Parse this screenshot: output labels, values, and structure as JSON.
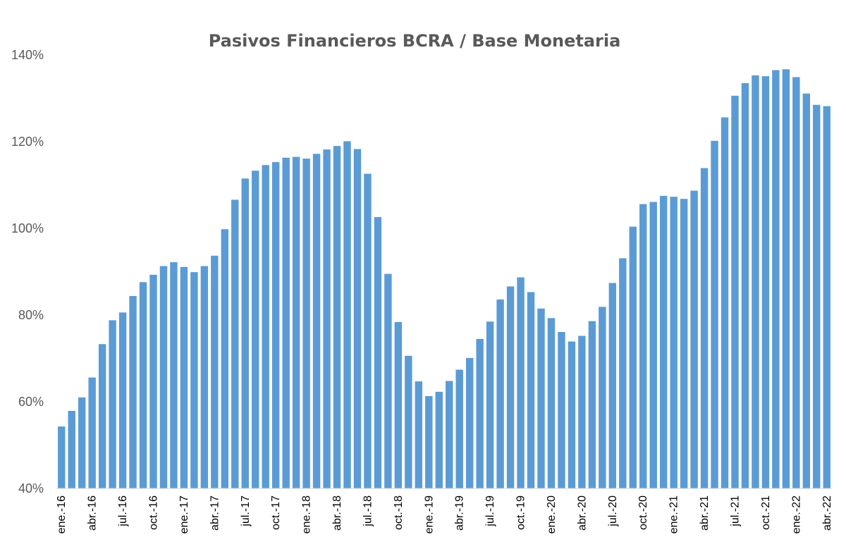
{
  "chart_data": {
    "type": "bar",
    "title": "Pasivos Financieros BCRA / Base Monetaria",
    "xlabel": "",
    "ylabel": "",
    "ylim": [
      40,
      140
    ],
    "yticks": [
      40,
      60,
      80,
      100,
      120,
      140
    ],
    "ytick_labels": [
      "40%",
      "60%",
      "80%",
      "100%",
      "120%",
      "140%"
    ],
    "bar_color": "#5B9BD5",
    "grid": false,
    "legend": "none",
    "categories": [
      "ene.-16",
      "feb.-16",
      "mar.-16",
      "abr.-16",
      "may.-16",
      "jun.-16",
      "jul.-16",
      "ago.-16",
      "sep.-16",
      "oct.-16",
      "nov.-16",
      "dic.-16",
      "ene.-17",
      "feb.-17",
      "mar.-17",
      "abr.-17",
      "may.-17",
      "jun.-17",
      "jul.-17",
      "ago.-17",
      "sep.-17",
      "oct.-17",
      "nov.-17",
      "dic.-17",
      "ene.-18",
      "feb.-18",
      "mar.-18",
      "abr.-18",
      "may.-18",
      "jun.-18",
      "jul.-18",
      "ago.-18",
      "sep.-18",
      "oct.-18",
      "nov.-18",
      "dic.-18",
      "ene.-19",
      "feb.-19",
      "mar.-19",
      "abr.-19",
      "may.-19",
      "jun.-19",
      "jul.-19",
      "ago.-19",
      "sep.-19",
      "oct.-19",
      "nov.-19",
      "dic.-19",
      "ene.-20",
      "feb.-20",
      "mar.-20",
      "abr.-20",
      "may.-20",
      "jun.-20",
      "jul.-20",
      "ago.-20",
      "sep.-20",
      "oct.-20",
      "nov.-20",
      "dic.-20",
      "ene.-21",
      "feb.-21",
      "mar.-21",
      "abr.-21",
      "may.-21",
      "jun.-21",
      "jul.-21",
      "ago.-21",
      "sep.-21",
      "oct.-21",
      "nov.-21",
      "dic.-21",
      "ene.-22",
      "feb.-22",
      "mar.-22",
      "abr.-22"
    ],
    "xtick_labels": [
      "ene.-16",
      "abr.-16",
      "jul.-16",
      "oct.-16",
      "ene.-17",
      "abr.-17",
      "jul.-17",
      "oct.-17",
      "ene.-18",
      "abr.-18",
      "jul.-18",
      "oct.-18",
      "ene.-19",
      "abr.-19",
      "jul.-19",
      "oct.-19",
      "ene.-20",
      "abr.-20",
      "jul.-20",
      "oct.-20",
      "ene.-21",
      "abr.-21",
      "jul.-21",
      "oct.-21",
      "ene.-22",
      "abr.-22"
    ],
    "values": [
      54.3,
      57.9,
      61.0,
      65.6,
      73.3,
      78.8,
      80.6,
      84.4,
      87.6,
      89.3,
      91.3,
      92.2,
      91.1,
      89.9,
      91.3,
      93.7,
      99.8,
      106.6,
      111.5,
      113.3,
      114.6,
      115.3,
      116.3,
      116.5,
      116.1,
      117.2,
      118.2,
      119.0,
      120.1,
      118.3,
      112.6,
      102.6,
      89.5,
      78.4,
      70.6,
      64.7,
      61.3,
      62.3,
      64.8,
      67.4,
      70.1,
      74.5,
      78.5,
      83.6,
      86.6,
      88.7,
      85.3,
      81.5,
      79.3,
      76.1,
      73.9,
      75.2,
      78.6,
      81.9,
      87.4,
      93.1,
      100.4,
      105.6,
      106.1,
      107.5,
      107.3,
      106.8,
      108.7,
      113.9,
      120.2,
      125.6,
      130.6,
      133.5,
      135.3,
      135.1,
      136.5,
      136.7,
      134.9,
      131.1,
      128.5,
      128.2
    ]
  }
}
